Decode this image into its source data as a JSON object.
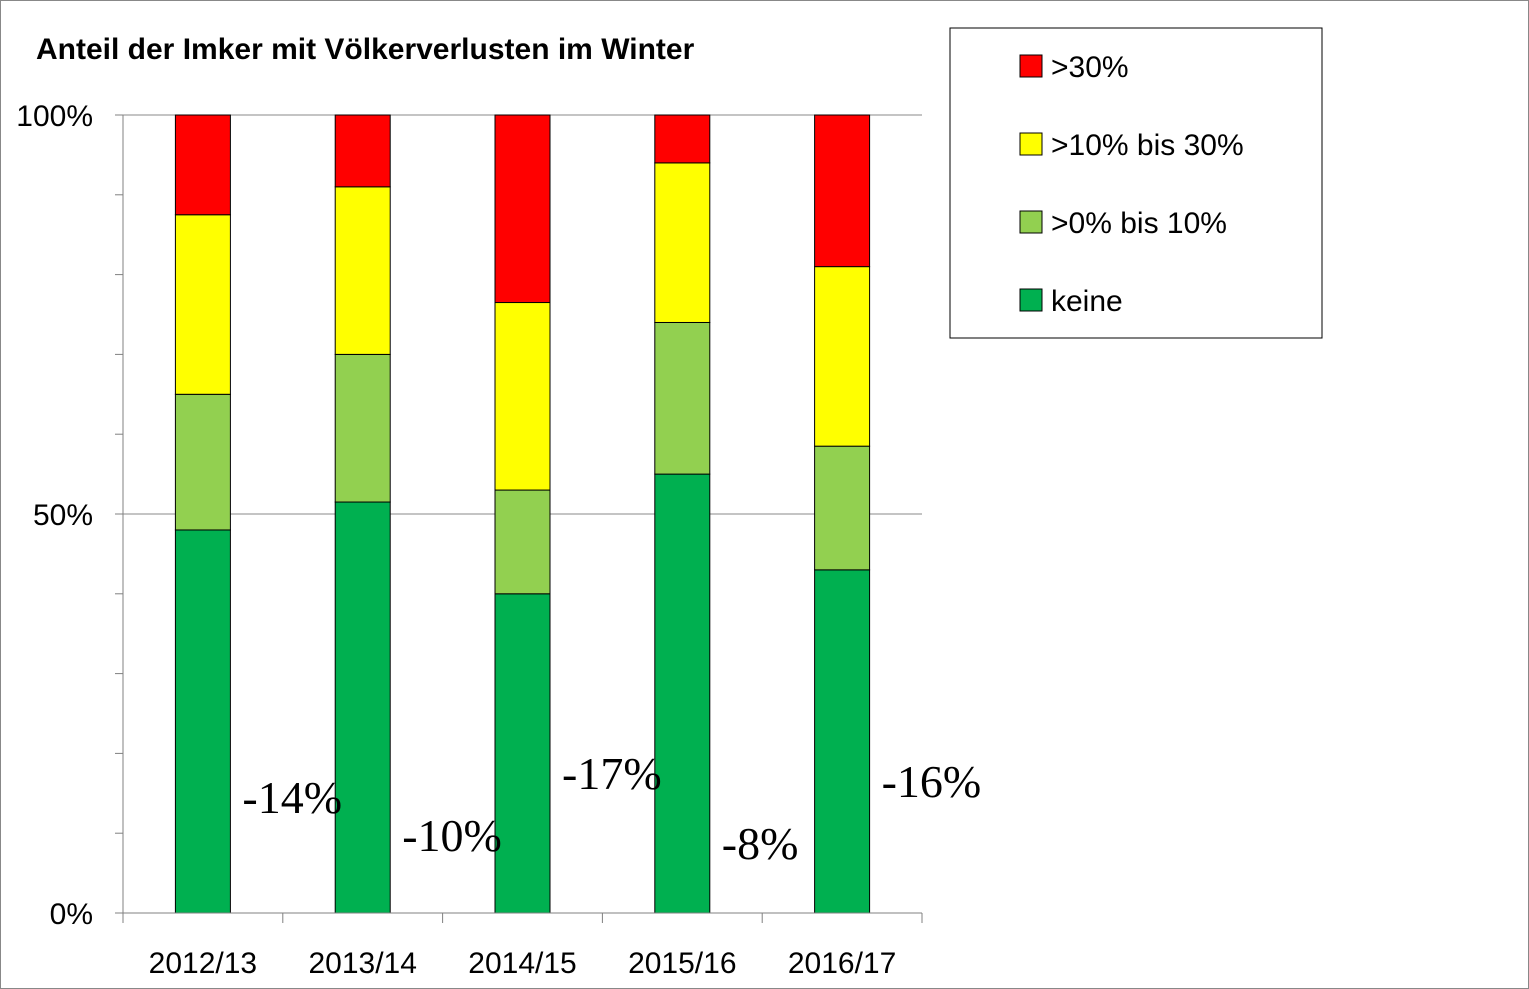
{
  "chart_data": {
    "type": "bar",
    "stacked": true,
    "title": "Anteil der Imker mit Völkerverlusten im Winter",
    "xlabel": "",
    "ylabel": "",
    "ylim": [
      0,
      100
    ],
    "yticks": [
      0,
      50,
      100
    ],
    "yticklabels": [
      "0%",
      "50%",
      "100%"
    ],
    "minor_ticks_step": 10,
    "gridlines": [
      50,
      100
    ],
    "categories": [
      "2012/13",
      "2013/14",
      "2014/15",
      "2015/16",
      "2016/17"
    ],
    "series": [
      {
        "name": "keine",
        "color": "#00b050",
        "values": [
          48,
          51.5,
          40,
          55,
          43
        ]
      },
      {
        "name": ">0% bis 10%",
        "color": "#92d050",
        "values": [
          17,
          18.5,
          13,
          19,
          15.5
        ]
      },
      {
        "name": ">10% bis 30%",
        "color": "#ffff00",
        "values": [
          22.5,
          21,
          23.5,
          20,
          22.5
        ]
      },
      {
        "name": ">30%",
        "color": "#ff0000",
        "values": [
          12.5,
          9,
          23.5,
          6,
          19
        ]
      }
    ],
    "annotations": [
      "-14%",
      "-10%",
      "-17%",
      "-8%",
      "-16%"
    ],
    "legend": {
      "position": "top-right",
      "order": [
        ">30%",
        ">10% bis 30%",
        ">0% bis 10%",
        "keine"
      ]
    }
  }
}
